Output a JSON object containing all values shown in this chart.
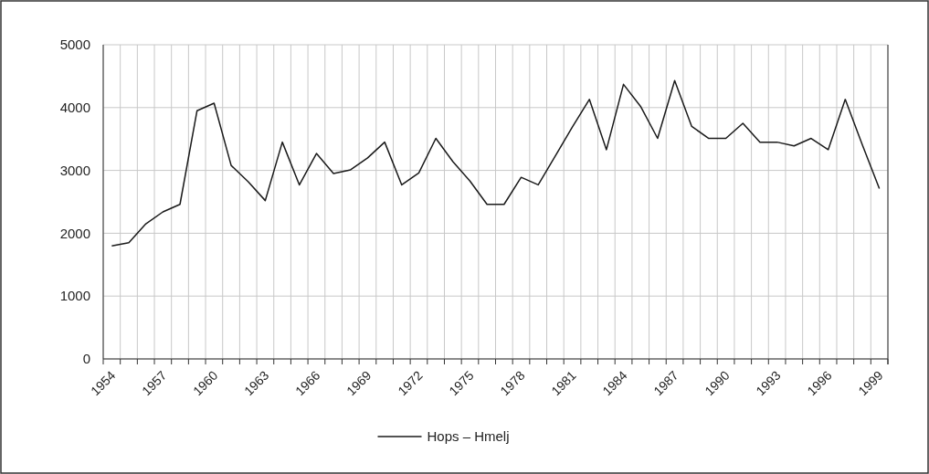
{
  "chart_data": {
    "type": "line",
    "categories": [
      "1954",
      null,
      null,
      "1957",
      null,
      null,
      "1960",
      null,
      null,
      "1963",
      null,
      null,
      "1966",
      null,
      null,
      "1969",
      null,
      null,
      "1972",
      null,
      null,
      "1975",
      null,
      null,
      "1978",
      null,
      null,
      "1981",
      null,
      null,
      "1984",
      null,
      null,
      "1987",
      null,
      null,
      "1990",
      null,
      null,
      "1993",
      null,
      null,
      "1996",
      null,
      null,
      "1999"
    ],
    "series": [
      {
        "name": "Hops – Hmelj",
        "color": "#1a1a1a",
        "values": [
          1800,
          1850,
          2150,
          2340,
          2460,
          3950,
          4070,
          3080,
          2820,
          2520,
          3450,
          2770,
          3270,
          2950,
          3010,
          3200,
          3450,
          2770,
          2960,
          3510,
          3140,
          2830,
          2460,
          2460,
          2890,
          2770,
          3230,
          3690,
          4130,
          3330,
          4370,
          4020,
          3510,
          4430,
          3700,
          3510,
          3510,
          3750,
          3450,
          3450,
          3390,
          3510,
          3330,
          4130,
          3410,
          2710
        ]
      }
    ],
    "ylim": [
      0,
      5000
    ],
    "yticks": [
      0,
      1000,
      2000,
      3000,
      4000,
      5000
    ],
    "grid": true,
    "legend": "bottom",
    "marker": "none",
    "line_style": "solid"
  }
}
